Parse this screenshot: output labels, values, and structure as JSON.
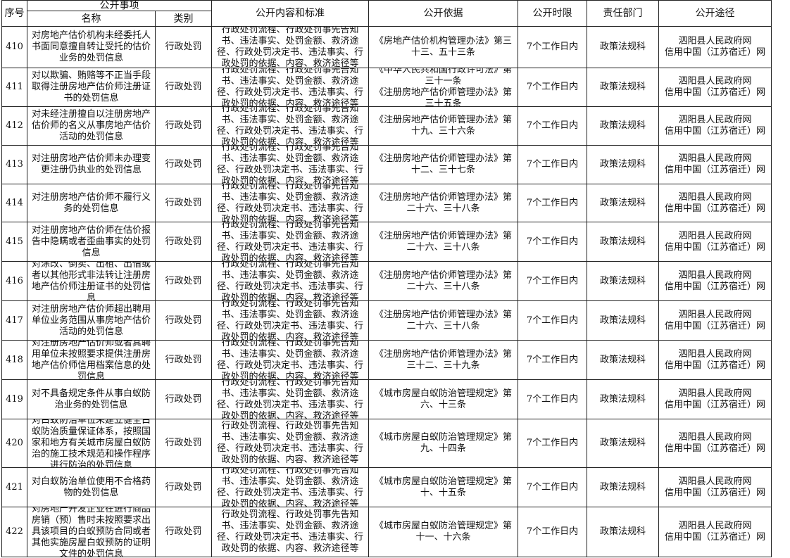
{
  "header": {
    "seq": "序号",
    "matter_group": "公开事项",
    "name": "名称",
    "category": "类别",
    "content": "公开内容和标准",
    "basis": "公开依据",
    "deadline": "公开时限",
    "department": "责任部门",
    "channel": "公开途径"
  },
  "rows": [
    {
      "seq": "410",
      "name": "对房地产估价机构未经委托人书面同意擅自转让受托的估价业务的处罚信息",
      "category": "行政处罚",
      "content": "行政处罚流程、行政处罚事先告知书、违法事实、处罚金额、救济途径、行政处罚决定书、违法事实、行政处罚的依据、内容、救济途径等",
      "basis": "《房地产估价机构管理办法》第三十三、五十三条",
      "deadline": "7个工作日内",
      "department": "政策法规科",
      "channel": "泗阳县人民政府网\n信用中国（江苏宿迁）网"
    },
    {
      "seq": "411",
      "name": "对以欺骗、贿赂等不正当手段取得注册房地产估价师注册证书的处罚信息",
      "category": "行政处罚",
      "content": "行政处罚流程、行政处罚事先告知书、违法事实、处罚金额、救济途径、行政处罚决定书、违法事实、行政处罚的依据、内容、救济途径等",
      "basis": "《中华人民共和国行政许可法》第三十一条\n《注册房地产估价师管理办法》第三十五条",
      "deadline": "7个工作日内",
      "department": "政策法规科",
      "channel": "泗阳县人民政府网\n信用中国（江苏宿迁）网"
    },
    {
      "seq": "412",
      "name": "对未经注册擅自以注册房地产估价师的名义从事房地产估价活动的处罚信息",
      "category": "行政处罚",
      "content": "行政处罚流程、行政处罚事先告知书、违法事实、处罚金额、救济途径、行政处罚决定书、违法事实、行政处罚的依据、内容、救济途径等",
      "basis": "《注册房地产估价师管理办法》第十九、三十六条",
      "deadline": "7个工作日内",
      "department": "政策法规科",
      "channel": "泗阳县人民政府网\n信用中国（江苏宿迁）网"
    },
    {
      "seq": "413",
      "name": "对注册房地产估价师未办理变更注册仍执业的处罚信息",
      "category": "行政处罚",
      "content": "行政处罚流程、行政处罚事先告知书、违法事实、处罚金额、救济途径、行政处罚决定书、违法事实、行政处罚的依据、内容、救济途径等",
      "basis": "《注册房地产估价师管理办法》第十二、三十七条",
      "deadline": "7个工作日内",
      "department": "政策法规科",
      "channel": "泗阳县人民政府网\n信用中国（江苏宿迁）网"
    },
    {
      "seq": "414",
      "name": "对注册房地产估价师不履行义务的处罚信息",
      "category": "行政处罚",
      "content": "行政处罚流程、行政处罚事先告知书、违法事实、处罚金额、救济途径、行政处罚决定书、违法事实、行政处罚的依据、内容、救济途径等",
      "basis": "《注册房地产估价师管理办法》第二十六、三十八条",
      "deadline": "7个工作日内",
      "department": "政策法规科",
      "channel": "泗阳县人民政府网\n信用中国（江苏宿迁）网"
    },
    {
      "seq": "415",
      "name": "对注册房地产估价师在估价报告中隐瞒或者歪曲事实的处罚信息",
      "category": "行政处罚",
      "content": "行政处罚流程、行政处罚事先告知书、违法事实、处罚金额、救济途径、行政处罚决定书、违法事实、行政处罚的依据、内容、救济途径等",
      "basis": "《注册房地产估价师管理办法》第二十六、三十八条",
      "deadline": "7个工作日内",
      "department": "政策法规科",
      "channel": "泗阳县人民政府网\n信用中国（江苏宿迁）网"
    },
    {
      "seq": "416",
      "name": "对涂改、倒卖、出租、出借或者以其他形式非法转让注册房地产估价师注册证书的处罚信息",
      "category": "行政处罚",
      "content": "行政处罚流程、行政处罚事先告知书、违法事实、处罚金额、救济途径、行政处罚决定书、违法事实、行政处罚的依据、内容、救济途径等",
      "basis": "《注册房地产估价师管理办法》第二十六、三十八条",
      "deadline": "7个工作日内",
      "department": "政策法规科",
      "channel": "泗阳县人民政府网\n信用中国（江苏宿迁）网"
    },
    {
      "seq": "417",
      "name": "对注册房地产估价师超出聘用单位业务范围从事房地产估价活动的处罚信息",
      "category": "行政处罚",
      "content": "行政处罚流程、行政处罚事先告知书、违法事实、处罚金额、救济途径、行政处罚决定书、违法事实、行政处罚的依据、内容、救济途径等",
      "basis": "《注册房地产估价师管理办法》第二十六、三十八条",
      "deadline": "7个工作日内",
      "department": "政策法规科",
      "channel": "泗阳县人民政府网\n信用中国（江苏宿迁）网"
    },
    {
      "seq": "418",
      "name": "对注册房地产估价师或者其聘用单位未按照要求提供注册房地产估价师信用档案信息的处罚信息",
      "category": "行政处罚",
      "content": "行政处罚流程、行政处罚事先告知书、违法事实、处罚金额、救济途径、行政处罚决定书、违法事实、行政处罚的依据、内容、救济途径等",
      "basis": "《注册房地产估价师管理办法》第三十二、三十九条",
      "deadline": "7个工作日内",
      "department": "政策法规科",
      "channel": "泗阳县人民政府网\n信用中国（江苏宿迁）网"
    },
    {
      "seq": "419",
      "name": "对不具备规定条件从事白蚁防治业务的处罚信息",
      "category": "行政处罚",
      "content": "行政处罚流程、行政处罚事先告知书、违法事实、处罚金额、救济途径、行政处罚决定书、违法事实、行政处罚的依据、内容、救济途径等",
      "basis": "《城市房屋白蚁防治管理规定》第六、十三条",
      "deadline": "7个工作日内",
      "department": "政策法规科",
      "channel": "泗阳县人民政府网\n信用中国（江苏宿迁）网"
    },
    {
      "seq": "420",
      "name": "对白蚁防治单位未建立健全白蚁防治质量保证体系，按照国家和地方有关城市房屋白蚁防治的施工技术规范和操作程序进行防治的处罚信息",
      "category": "行政处罚",
      "content": "行政处罚流程、行政处罚事先告知书、违法事实、处罚金额、救济途径、行政处罚决定书、违法事实、行政处罚的依据、内容、救济途径等",
      "basis": "《城市房屋白蚁防治管理规定》第九、十四条",
      "deadline": "7个工作日内",
      "department": "政策法规科",
      "channel": "泗阳县人民政府网\n信用中国（江苏宿迁）网"
    },
    {
      "seq": "421",
      "name": "对白蚁防治单位使用不合格药物的处罚信息",
      "category": "行政处罚",
      "content": "行政处罚流程、行政处罚事先告知书、违法事实、处罚金额、救济途径、行政处罚决定书、违法事实、行政处罚的依据、内容、救济途径等",
      "basis": "《城市房屋白蚁防治管理规定》第十、十五条",
      "deadline": "7个工作日内",
      "department": "政策法规科",
      "channel": "泗阳县人民政府网\n信用中国（江苏宿迁）网"
    },
    {
      "seq": "422",
      "name": "对房地产开发企业在进行商品房销（预）售时未按照要求出具该项目的白蚁预防合同或者其他实施房屋白蚁预防的证明文件的处罚信息",
      "category": "行政处罚",
      "content": "行政处罚流程、行政处罚事先告知书、违法事实、处罚金额、救济途径、行政处罚决定书、违法事实、行政处罚的依据、内容、救济途径等",
      "basis": "《城市房屋白蚁防治管理规定》第十一、十六条",
      "deadline": "7个工作日内",
      "department": "政策法规科",
      "channel": "泗阳县人民政府网\n信用中国（江苏宿迁）网"
    }
  ]
}
